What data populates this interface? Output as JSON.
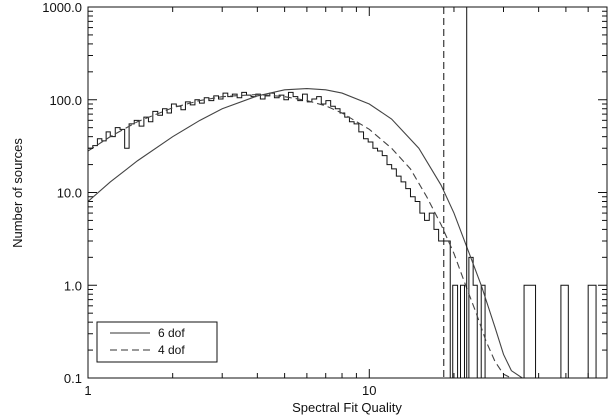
{
  "chart_data": {
    "type": "line",
    "title": "",
    "xlabel": "Spectral Fit Quality",
    "ylabel": "Number of sources",
    "x_scale": "log",
    "y_scale": "log",
    "xlim": [
      1,
      70
    ],
    "ylim": [
      0.1,
      1000
    ],
    "x_ticks": [
      {
        "value": 1,
        "label": "1"
      },
      {
        "value": 10,
        "label": "10"
      }
    ],
    "y_ticks": [
      {
        "value": 0.1,
        "label": "0.1"
      },
      {
        "value": 1,
        "label": "1.0"
      },
      {
        "value": 10,
        "label": "10.0"
      },
      {
        "value": 100,
        "label": "100.0"
      },
      {
        "value": 1000,
        "label": "1000.0"
      }
    ],
    "grid": false,
    "legend_position": "bottom-left",
    "legend": [
      {
        "label": "6 dof",
        "style": "solid"
      },
      {
        "label": "4 dof",
        "style": "dashed"
      }
    ],
    "histogram": {
      "style": "step",
      "edges": [
        1.0,
        1.04,
        1.08,
        1.12,
        1.16,
        1.2,
        1.25,
        1.3,
        1.35,
        1.4,
        1.46,
        1.52,
        1.58,
        1.64,
        1.7,
        1.77,
        1.84,
        1.91,
        1.98,
        2.06,
        2.14,
        2.22,
        2.31,
        2.4,
        2.49,
        2.59,
        2.69,
        2.8,
        2.91,
        3.02,
        3.14,
        3.26,
        3.39,
        3.52,
        3.66,
        3.8,
        3.95,
        4.1,
        4.26,
        4.43,
        4.6,
        4.78,
        4.97,
        5.16,
        5.36,
        5.57,
        5.79,
        6.02,
        6.25,
        6.5,
        6.75,
        7.01,
        7.29,
        7.57,
        7.87,
        8.18,
        8.5,
        8.83,
        9.18,
        9.54,
        9.91,
        10.3,
        10.7,
        11.12,
        11.56,
        12.01,
        12.48,
        12.97,
        13.48,
        14.01,
        14.56,
        15.13,
        15.72,
        16.34,
        16.98,
        17.64,
        18.33,
        19.05,
        19.4,
        19.8,
        20.6,
        21.1,
        21.8,
        22.6,
        23.4,
        24.2,
        25.0,
        25.8,
        26.6,
        27.5,
        29.5,
        31.5,
        33.5,
        35.5,
        39.0,
        42.0,
        45.0,
        48.0,
        51.0,
        55.0,
        60.0,
        64.0,
        70.0
      ],
      "counts": [
        30,
        32,
        38,
        36,
        45,
        40,
        50,
        48,
        30,
        55,
        60,
        52,
        65,
        58,
        75,
        68,
        80,
        72,
        90,
        85,
        78,
        95,
        88,
        100,
        92,
        105,
        98,
        110,
        102,
        118,
        108,
        115,
        105,
        120,
        112,
        108,
        115,
        102,
        110,
        118,
        105,
        112,
        100,
        120,
        108,
        98,
        115,
        95,
        102,
        108,
        90,
        98,
        85,
        80,
        72,
        65,
        58,
        55,
        45,
        38,
        35,
        30,
        28,
        25,
        20,
        18,
        15,
        13,
        11,
        9,
        8,
        6,
        5,
        6,
        4,
        3,
        3,
        3,
        0,
        1,
        0,
        1,
        0,
        2,
        1,
        0,
        1,
        0,
        0,
        0,
        0,
        0,
        0,
        1,
        0,
        0,
        0,
        1,
        0,
        0,
        1,
        0
      ]
    },
    "series": [
      {
        "name": "6 dof",
        "style": "solid",
        "x": [
          1,
          1.2,
          1.5,
          2,
          2.5,
          3,
          4,
          5,
          6,
          7,
          8,
          10,
          12,
          15,
          18,
          20,
          22,
          25,
          28,
          30,
          32,
          35
        ],
        "y": [
          8,
          13,
          22,
          40,
          60,
          80,
          110,
          128,
          132,
          128,
          118,
          90,
          62,
          30,
          12,
          6,
          2.8,
          1.0,
          0.35,
          0.18,
          0.12,
          0.1
        ]
      },
      {
        "name": "4 dof",
        "style": "dashed",
        "x": [
          1,
          1.2,
          1.5,
          2,
          2.5,
          3,
          4,
          5,
          6,
          7,
          8,
          10,
          12,
          14,
          16,
          18,
          20,
          22,
          24,
          26,
          28,
          30,
          32
        ],
        "y": [
          28,
          40,
          58,
          82,
          98,
          108,
          114,
          108,
          98,
          86,
          72,
          48,
          30,
          18,
          9,
          4.5,
          2.2,
          1.0,
          0.5,
          0.25,
          0.15,
          0.11,
          0.1
        ]
      }
    ],
    "vertical_lines": [
      {
        "x": 18.4,
        "style": "dashed"
      },
      {
        "x": 22.2,
        "style": "solid"
      }
    ]
  }
}
